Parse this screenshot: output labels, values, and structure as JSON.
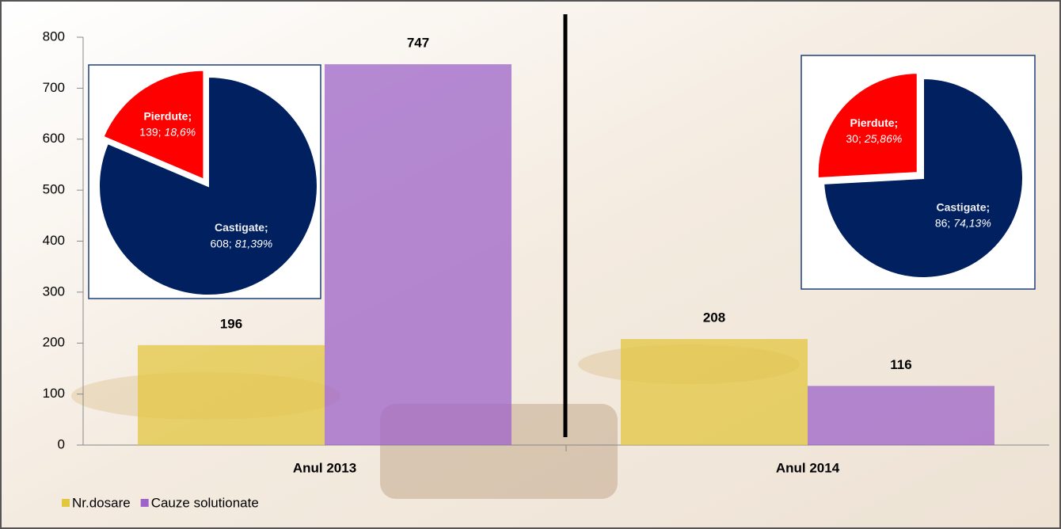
{
  "chart_data": [
    {
      "type": "bar",
      "categories": [
        "Anul 2013",
        "Anul 2014"
      ],
      "series": [
        {
          "name": "Nr.dosare",
          "color": "#e3c640",
          "values": [
            196,
            208
          ]
        },
        {
          "name": "Cauze solutionate",
          "color": "#9d63c8",
          "values": [
            747,
            116
          ]
        }
      ],
      "ylim": [
        0,
        800
      ],
      "yticks": [
        0,
        100,
        200,
        300,
        400,
        500,
        600,
        700,
        800
      ],
      "legend": "bottom-left"
    },
    {
      "type": "pie",
      "categories": [
        "Pierdute;",
        "Castigate;"
      ],
      "values": [
        139,
        608
      ],
      "value_labels": [
        "139;",
        "608;"
      ],
      "percent_labels": [
        "18,6%",
        "81,39%"
      ],
      "colors": [
        "#ff0000",
        "#002060"
      ]
    },
    {
      "type": "pie",
      "categories": [
        "Pierdute;",
        "Castigate;"
      ],
      "values": [
        30,
        86
      ],
      "value_labels": [
        "30;",
        "86;"
      ],
      "percent_labels": [
        "25,86%",
        "74,13%"
      ],
      "colors": [
        "#ff0000",
        "#002060"
      ]
    }
  ]
}
